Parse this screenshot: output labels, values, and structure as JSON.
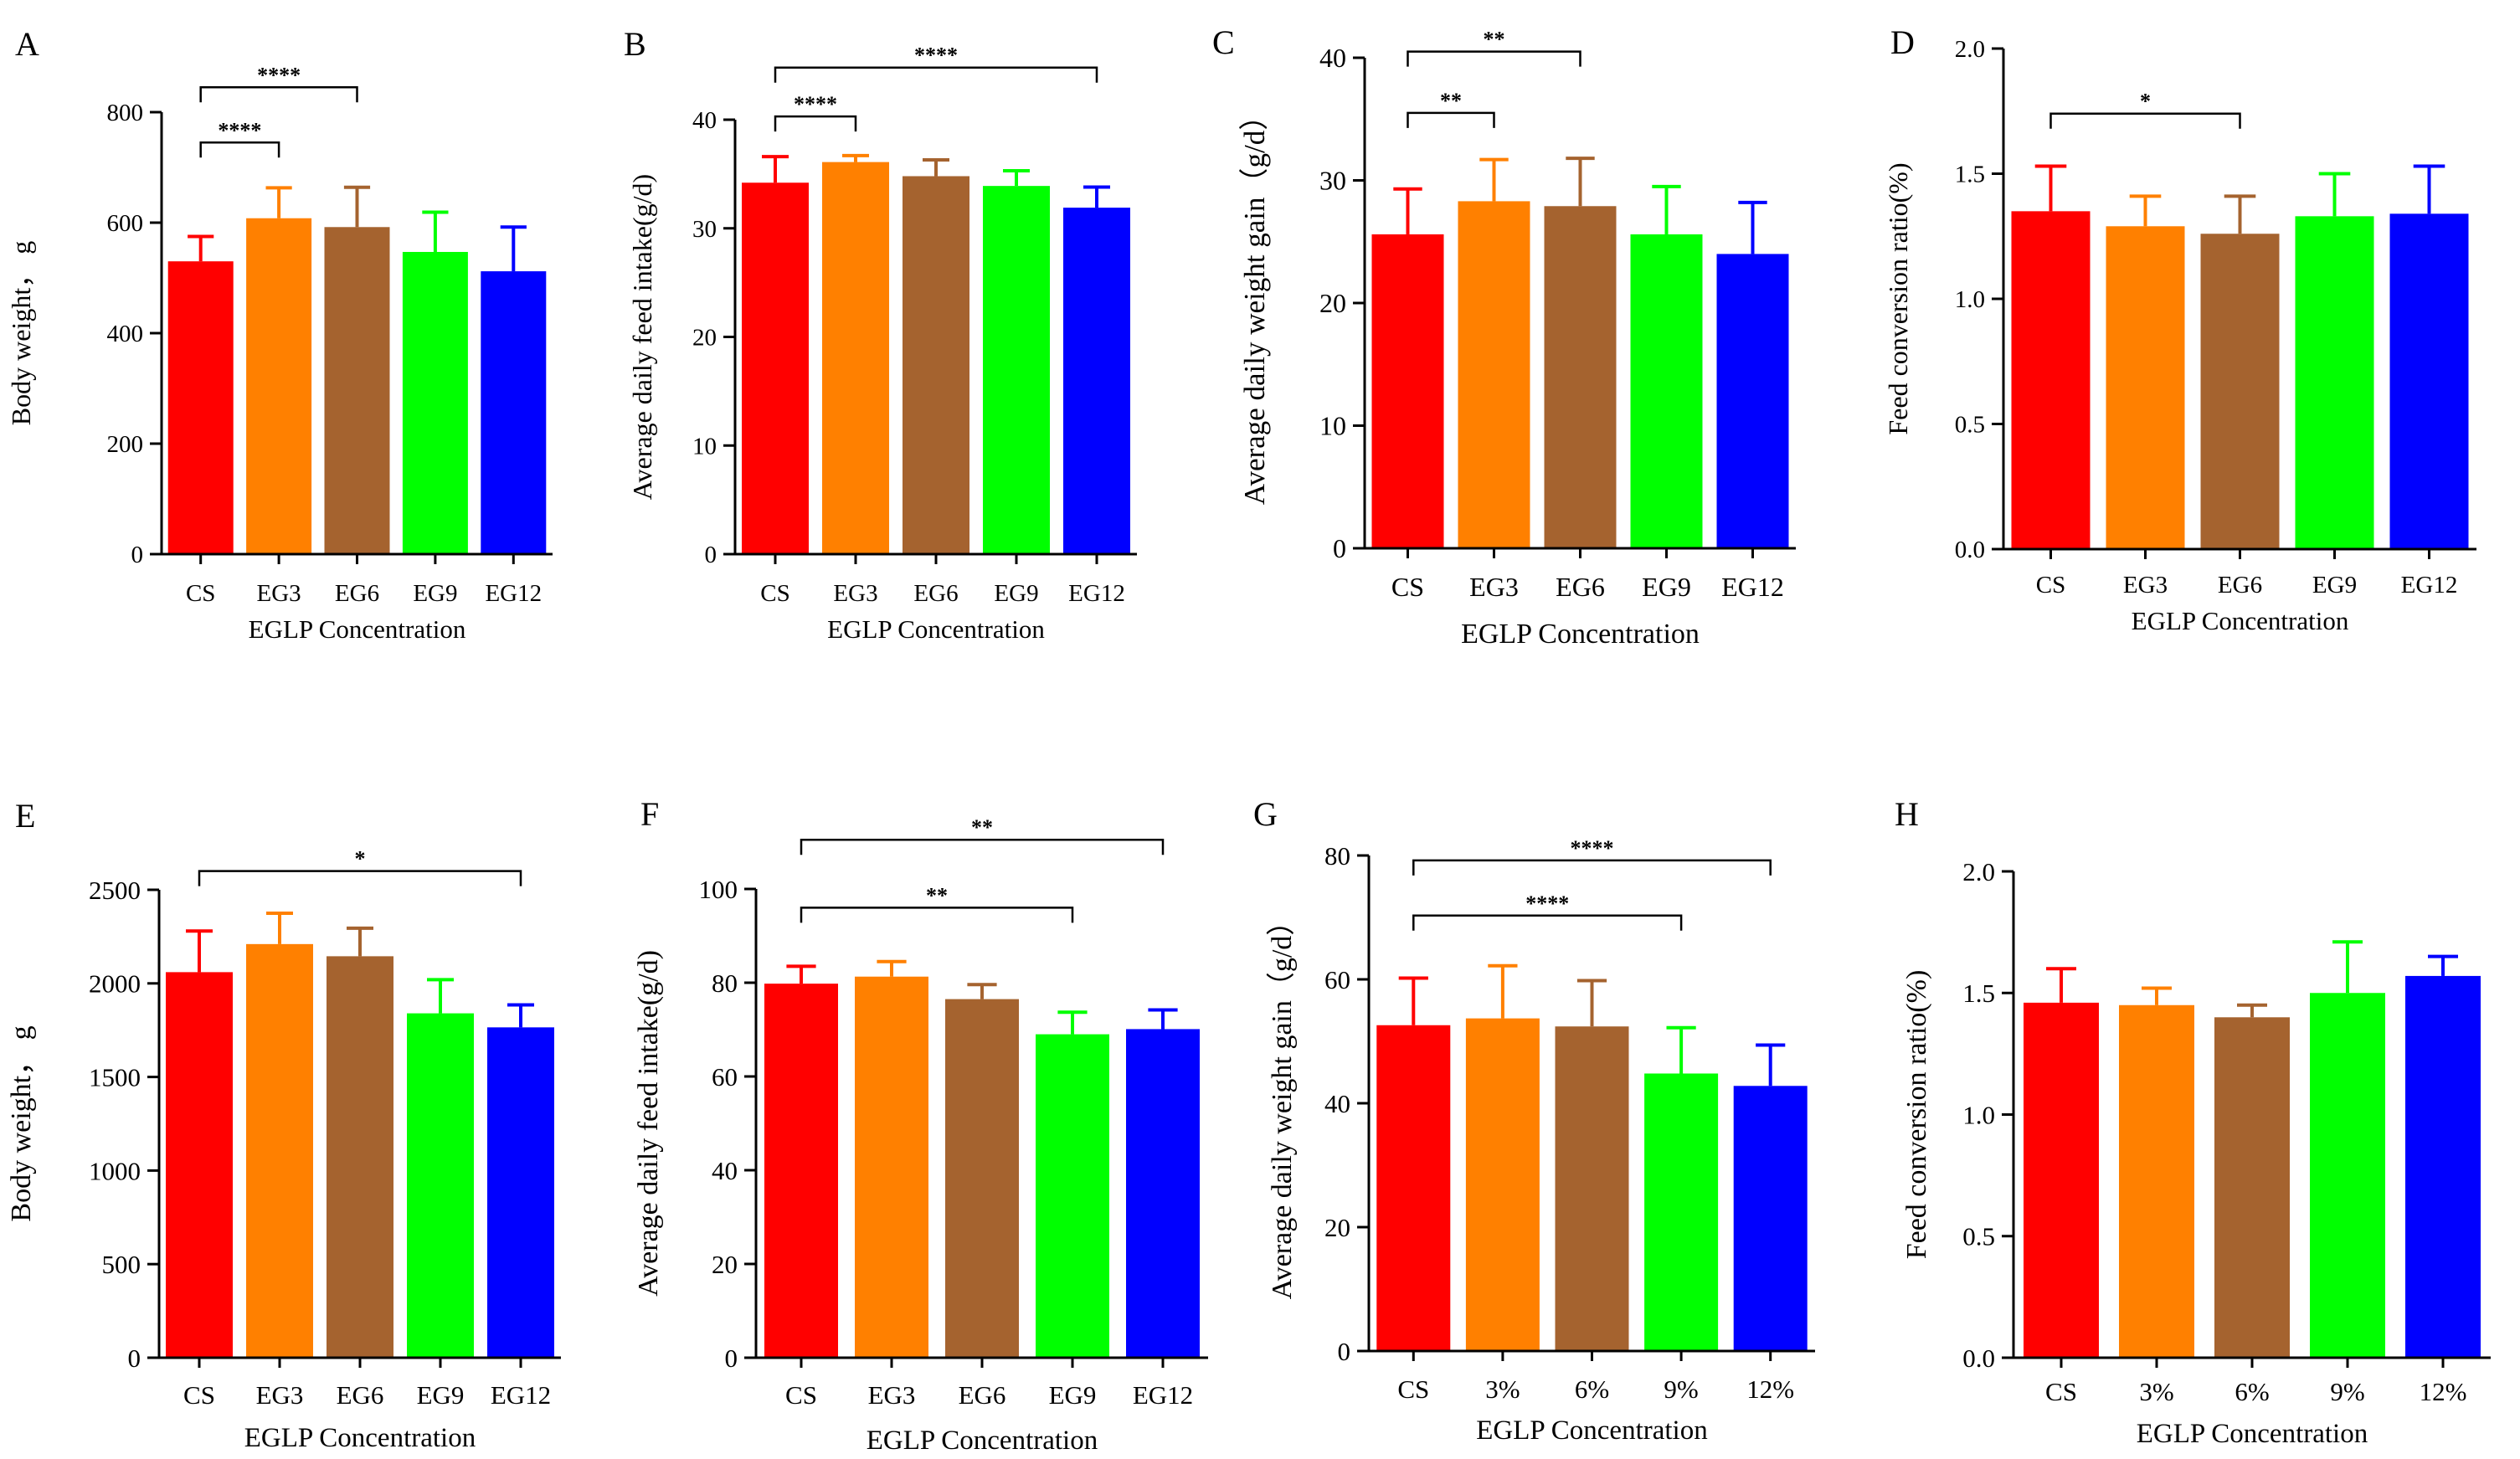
{
  "figure": {
    "colors": [
      "#ff0000",
      "#ff8000",
      "#a5632f",
      "#00ff00",
      "#0000ff"
    ],
    "axis_color": "#000000"
  },
  "chart_data": [
    {
      "panel": "A",
      "type": "bar",
      "title": "",
      "ylabel": "Body weight， g",
      "xlabel": "EGLP Concentration",
      "categories": [
        "CS",
        "EG3",
        "EG6",
        "EG9",
        "EG12"
      ],
      "values": [
        530,
        608,
        592,
        547,
        512
      ],
      "errors": [
        45,
        55,
        72,
        72,
        80
      ],
      "ylim": [
        0,
        800
      ],
      "yticks": [
        0,
        200,
        400,
        600,
        800
      ],
      "ytick_labels": [
        "0",
        "200",
        "400",
        "600",
        "800"
      ],
      "significance": [
        {
          "from": 0,
          "to": 1,
          "label": "****",
          "level": 745
        },
        {
          "from": 0,
          "to": 2,
          "label": "****",
          "level": 845
        }
      ]
    },
    {
      "panel": "B",
      "type": "bar",
      "title": "",
      "ylabel": "Average daily feed intake(g/d)",
      "xlabel": "EGLP Concentration",
      "categories": [
        "CS",
        "EG3",
        "EG6",
        "EG9",
        "EG12"
      ],
      "values": [
        34.2,
        36.1,
        34.8,
        33.9,
        31.9
      ],
      "errors": [
        2.4,
        0.6,
        1.5,
        1.4,
        1.9
      ],
      "ylim": [
        0,
        40
      ],
      "yticks": [
        0,
        10,
        20,
        30,
        40
      ],
      "ytick_labels": [
        "0",
        "10",
        "20",
        "30",
        "40"
      ],
      "significance": [
        {
          "from": 0,
          "to": 1,
          "label": "****",
          "level": 40.3
        },
        {
          "from": 0,
          "to": 4,
          "label": "****",
          "level": 44.8
        }
      ]
    },
    {
      "panel": "C",
      "type": "bar",
      "title": "",
      "ylabel": "Average daily weight gain（g/d）",
      "xlabel": "EGLP Concentration",
      "categories": [
        "CS",
        "EG3",
        "EG6",
        "EG9",
        "EG12"
      ],
      "values": [
        25.6,
        28.3,
        27.9,
        25.6,
        24.0
      ],
      "errors": [
        3.7,
        3.4,
        3.9,
        3.9,
        4.2
      ],
      "ylim": [
        0,
        40
      ],
      "yticks": [
        0,
        10,
        20,
        30,
        40
      ],
      "ytick_labels": [
        "0",
        "10",
        "20",
        "30",
        "40"
      ],
      "significance": [
        {
          "from": 0,
          "to": 1,
          "label": "**",
          "level": 35.5
        },
        {
          "from": 0,
          "to": 2,
          "label": "**",
          "level": 40.5
        }
      ]
    },
    {
      "panel": "D",
      "type": "bar",
      "title": "",
      "ylabel": "Feed conversion ratio(%)",
      "xlabel": "EGLP Concentration",
      "categories": [
        "CS",
        "EG3",
        "EG6",
        "EG9",
        "EG12"
      ],
      "values": [
        1.35,
        1.29,
        1.26,
        1.33,
        1.34
      ],
      "errors": [
        0.18,
        0.12,
        0.15,
        0.17,
        0.19
      ],
      "ylim": [
        0,
        2.0
      ],
      "yticks": [
        0,
        0.5,
        1.0,
        1.5,
        2.0
      ],
      "ytick_labels": [
        "0.0",
        "0.5",
        "1.0",
        "1.5",
        "2.0"
      ],
      "significance": [
        {
          "from": 0,
          "to": 2,
          "label": "*",
          "level": 1.74
        }
      ]
    },
    {
      "panel": "E",
      "type": "bar",
      "title": "",
      "ylabel": "Body weight， g",
      "xlabel": "EGLP Concentration",
      "categories": [
        "CS",
        "EG3",
        "EG6",
        "EG9",
        "EG12"
      ],
      "values": [
        2060,
        2210,
        2145,
        1840,
        1765
      ],
      "errors": [
        220,
        165,
        150,
        180,
        120
      ],
      "ylim": [
        0,
        2500
      ],
      "yticks": [
        0,
        500,
        1000,
        1500,
        2000,
        2500
      ],
      "ytick_labels": [
        "0",
        "500",
        "1000",
        "1500",
        "2000",
        "2500"
      ],
      "significance": [
        {
          "from": 0,
          "to": 4,
          "label": "*",
          "level": 2600
        }
      ]
    },
    {
      "panel": "F",
      "type": "bar",
      "title": "",
      "ylabel": "Average daily feed intake(g/d)",
      "xlabel": "EGLP Concentration",
      "categories": [
        "CS",
        "EG3",
        "EG6",
        "EG9",
        "EG12"
      ],
      "values": [
        79.8,
        81.3,
        76.5,
        69.0,
        70.1
      ],
      "errors": [
        3.7,
        3.2,
        3.1,
        4.7,
        4.1
      ],
      "ylim": [
        0,
        100
      ],
      "yticks": [
        0,
        20,
        40,
        60,
        80,
        100
      ],
      "ytick_labels": [
        "0",
        "20",
        "40",
        "60",
        "80",
        "100"
      ],
      "significance": [
        {
          "from": 0,
          "to": 3,
          "label": "**",
          "level": 96
        },
        {
          "from": 0,
          "to": 4,
          "label": "**",
          "level": 110.5
        }
      ]
    },
    {
      "panel": "G",
      "type": "bar",
      "title": "",
      "ylabel": "Average daily weight gain（g/d）",
      "xlabel": "EGLP Concentration",
      "categories": [
        "CS",
        "3%",
        "6%",
        "9%",
        "12%"
      ],
      "values": [
        52.6,
        53.7,
        52.4,
        44.8,
        42.8
      ],
      "errors": [
        7.6,
        8.5,
        7.4,
        7.4,
        6.6
      ],
      "ylim": [
        0,
        80
      ],
      "yticks": [
        0,
        20,
        40,
        60,
        80
      ],
      "ytick_labels": [
        "0",
        "20",
        "40",
        "60",
        "80"
      ],
      "significance": [
        {
          "from": 0,
          "to": 3,
          "label": "****",
          "level": 70.3
        },
        {
          "from": 0,
          "to": 4,
          "label": "****",
          "level": 79.2
        }
      ]
    },
    {
      "panel": "H",
      "type": "bar",
      "title": "",
      "ylabel": "Feed conversion ratio(%)",
      "xlabel": "EGLP Concentration",
      "categories": [
        "CS",
        "3%",
        "6%",
        "9%",
        "12%"
      ],
      "values": [
        1.46,
        1.45,
        1.4,
        1.5,
        1.57
      ],
      "errors": [
        0.14,
        0.07,
        0.05,
        0.21,
        0.08
      ],
      "ylim": [
        0,
        2.0
      ],
      "yticks": [
        0,
        0.5,
        1.0,
        1.5,
        2.0
      ],
      "ytick_labels": [
        "0.0",
        "0.5",
        "1.0",
        "1.5",
        "2.0"
      ],
      "significance": []
    }
  ]
}
